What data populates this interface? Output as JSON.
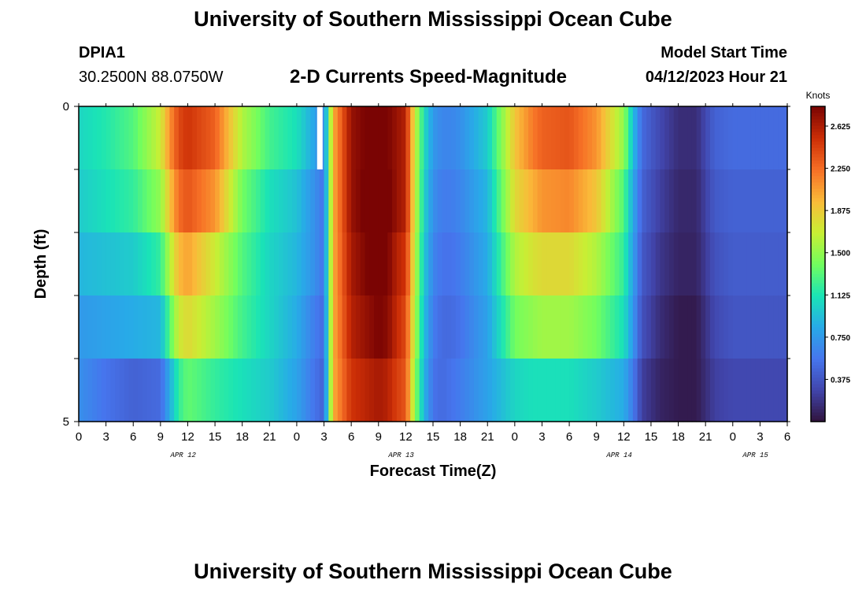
{
  "header": {
    "title": "University of Southern Mississippi Ocean Cube",
    "station_id": "DPIA1",
    "coords": "30.2500N  88.0750W",
    "subtitle": "2-D Currents Speed-Magnitude",
    "model_start_label": "Model Start Time",
    "model_start_value": "04/12/2023 Hour 21"
  },
  "footer": {
    "title": "University of Southern Mississippi Ocean Cube"
  },
  "chart_data": {
    "type": "heatmap",
    "title": "2-D Currents Speed-Magnitude",
    "xlabel": "Forecast Time(Z)",
    "ylabel": "Depth (ft)",
    "x_hours_offset": [
      0,
      78
    ],
    "x_tick_labels": [
      "0",
      "3",
      "6",
      "9",
      "12",
      "15",
      "18",
      "21",
      "0",
      "3",
      "6",
      "9",
      "12",
      "15",
      "18",
      "21",
      "0",
      "3",
      "6",
      "9",
      "12",
      "15",
      "18",
      "21",
      "0",
      "3",
      "6"
    ],
    "date_labels": [
      {
        "text": "APR 12",
        "hour": 11.5
      },
      {
        "text": "APR 13",
        "hour": 35.5
      },
      {
        "text": "APR 14",
        "hour": 59.5
      },
      {
        "text": "APR 15",
        "hour": 74.5
      }
    ],
    "y_tick_labels": [
      "0",
      "5"
    ],
    "ylim": [
      0,
      5
    ],
    "colorbar": {
      "unit": "Knots",
      "range": [
        0,
        2.8
      ],
      "tick_labels": [
        "0.375",
        "0.750",
        "1.125",
        "1.500",
        "1.875",
        "2.250",
        "2.625"
      ],
      "tick_values": [
        0.375,
        0.75,
        1.125,
        1.5,
        1.875,
        2.25,
        2.625
      ]
    },
    "depth_layers": 5,
    "time_keypoints_hours": [
      0,
      3,
      6,
      9,
      10,
      11,
      12,
      15,
      18,
      21,
      24,
      26,
      27,
      28,
      30,
      33,
      34,
      35,
      36,
      37,
      38,
      39,
      40,
      41,
      42,
      45,
      48,
      50,
      51,
      54,
      57,
      60,
      61,
      62,
      64,
      66,
      68,
      70,
      72,
      75,
      78
    ],
    "layer_keypoint_values": [
      [
        1.05,
        1.15,
        1.3,
        1.7,
        2.1,
        2.4,
        2.5,
        2.3,
        1.6,
        1.25,
        1.1,
        0.8,
        0.6,
        2.0,
        2.7,
        2.9,
        2.8,
        2.7,
        2.6,
        1.7,
        1.1,
        0.75,
        0.65,
        0.65,
        0.7,
        1.0,
        1.9,
        2.2,
        2.3,
        2.35,
        2.1,
        1.5,
        0.95,
        0.5,
        0.3,
        0.15,
        0.15,
        0.45,
        0.5,
        0.5,
        0.5
      ],
      [
        1.0,
        1.1,
        1.2,
        1.5,
        1.9,
        2.25,
        2.35,
        2.1,
        1.4,
        1.1,
        0.95,
        0.7,
        0.55,
        2.0,
        2.7,
        2.95,
        2.85,
        2.7,
        2.6,
        1.7,
        1.05,
        0.7,
        0.6,
        0.6,
        0.65,
        0.9,
        1.8,
        2.0,
        2.1,
        2.15,
        1.9,
        1.3,
        0.85,
        0.45,
        0.25,
        0.12,
        0.12,
        0.4,
        0.45,
        0.45,
        0.45
      ],
      [
        0.9,
        0.95,
        1.0,
        1.2,
        1.6,
        1.95,
        2.05,
        1.7,
        1.3,
        1.05,
        0.9,
        0.7,
        0.55,
        2.0,
        2.65,
        2.9,
        2.8,
        2.6,
        2.5,
        1.65,
        1.0,
        0.65,
        0.55,
        0.55,
        0.6,
        0.85,
        1.6,
        1.75,
        1.8,
        1.8,
        1.6,
        1.2,
        0.8,
        0.4,
        0.2,
        0.1,
        0.1,
        0.35,
        0.42,
        0.42,
        0.42
      ],
      [
        0.75,
        0.8,
        0.85,
        0.9,
        1.3,
        1.7,
        1.8,
        1.55,
        1.25,
        1.05,
        0.85,
        0.6,
        0.5,
        2.0,
        2.6,
        2.8,
        2.75,
        2.55,
        2.4,
        1.6,
        0.95,
        0.6,
        0.5,
        0.5,
        0.55,
        0.8,
        1.4,
        1.5,
        1.55,
        1.55,
        1.4,
        1.1,
        0.75,
        0.35,
        0.15,
        0.05,
        0.05,
        0.3,
        0.38,
        0.38,
        0.38
      ],
      [
        0.7,
        0.55,
        0.45,
        0.5,
        0.85,
        1.2,
        1.35,
        1.2,
        1.1,
        1.0,
        0.8,
        0.55,
        0.45,
        2.0,
        2.5,
        2.65,
        2.6,
        2.45,
        2.35,
        1.5,
        0.9,
        0.55,
        0.5,
        0.55,
        0.6,
        0.8,
        1.05,
        1.1,
        1.1,
        1.1,
        1.0,
        0.85,
        0.6,
        0.25,
        0.1,
        0.05,
        0.05,
        0.25,
        0.3,
        0.3,
        0.3
      ]
    ],
    "marker": {
      "hour": 26.5,
      "depth_layer": 0,
      "color": "#ffffff"
    }
  }
}
